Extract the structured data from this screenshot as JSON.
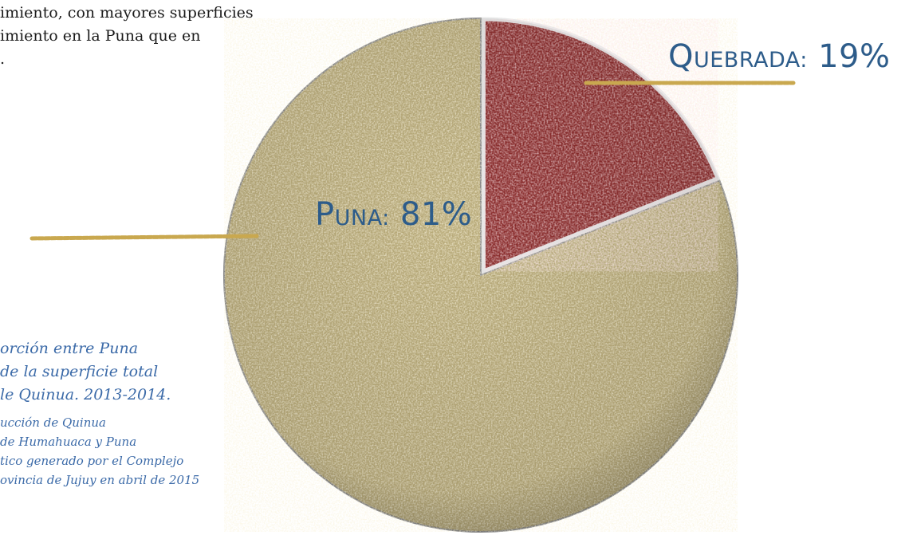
{
  "intro_text": "imiento, con mayores superficies\nimiento en la Puna que en\n.",
  "caption": {
    "title": "orción entre Puna\nde la superficie total\nle Quinua. 2013-2014.",
    "source": "ucción de Quinua\nde Humahuaca y Puna\ntico generado por el Complejo\novincia de Jujuy en abril de 2015"
  },
  "chart_data": {
    "type": "pie",
    "slices": [
      {
        "label": "Puna: 81%",
        "value": 81,
        "color": "#b9ab7a",
        "texture": "light-quinoa-grains"
      },
      {
        "label": "Quebrada: 19%",
        "value": 19,
        "color": "#8c2e2e",
        "texture": "red-quinoa-grains"
      }
    ],
    "unit": "%"
  },
  "colors": {
    "label_text": "#2d5c8a",
    "caption_text": "#3b6aa8",
    "leader_line": "#c9a84f"
  }
}
